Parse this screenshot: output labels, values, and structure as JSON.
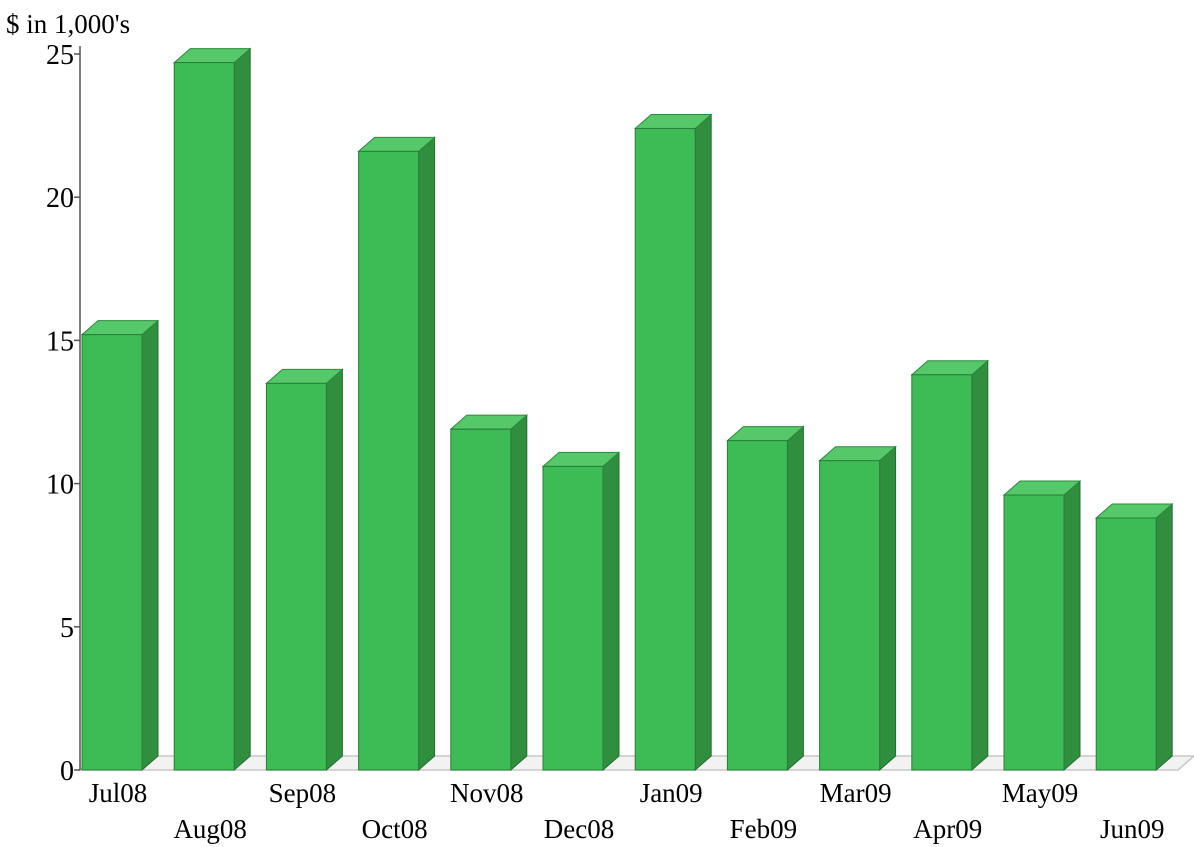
{
  "chart_data": {
    "type": "bar",
    "ylabel": "$ in 1,000's",
    "xlabel": "",
    "title": "",
    "ylim": [
      0,
      25
    ],
    "yticks": [
      0,
      5,
      10,
      15,
      20,
      25
    ],
    "grid": false,
    "categories": [
      "Jul08",
      "Aug08",
      "Sep08",
      "Oct08",
      "Nov08",
      "Dec08",
      "Jan09",
      "Feb09",
      "Mar09",
      "Apr09",
      "May09",
      "Jun09"
    ],
    "values": [
      15.2,
      24.7,
      13.5,
      21.6,
      11.9,
      10.6,
      22.4,
      11.5,
      10.8,
      13.8,
      9.6,
      8.8
    ],
    "colors": {
      "bar_front": "#3dbb55",
      "bar_top": "#55c86a",
      "bar_side": "#2f8f3f",
      "floor": "#c8c8c8"
    }
  }
}
